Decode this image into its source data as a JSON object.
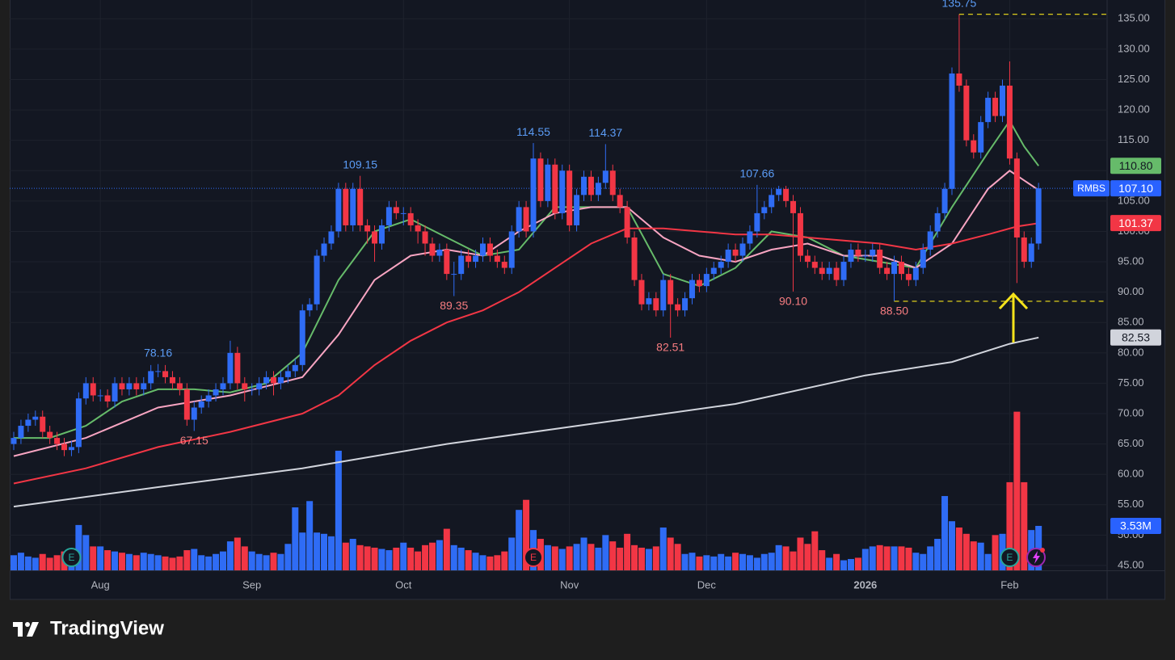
{
  "chart_data": {
    "type": "candlestick",
    "symbol": "RMBS",
    "xlim": [
      -0.56,
      151.5
    ],
    "ylim": [
      44.2,
      138.1
    ],
    "grid": true,
    "up_color": "#2f6cf5",
    "down_color": "#f23645",
    "xticks": [
      {
        "value": 12,
        "label": "Aug"
      },
      {
        "value": 33,
        "label": "Sep"
      },
      {
        "value": 54,
        "label": "Oct"
      },
      {
        "value": 77,
        "label": "Nov"
      },
      {
        "value": 96,
        "label": "Dec"
      },
      {
        "value": 118,
        "label": "2026"
      },
      {
        "value": 138,
        "label": "Feb"
      }
    ],
    "yticks": [
      {
        "value": 45,
        "label": "45.00"
      },
      {
        "value": 50,
        "label": "50.00"
      },
      {
        "value": 55,
        "label": "55.00"
      },
      {
        "value": 60,
        "label": "60.00"
      },
      {
        "value": 65,
        "label": "65.00"
      },
      {
        "value": 70,
        "label": "70.00"
      },
      {
        "value": 75,
        "label": "75.00"
      },
      {
        "value": 80,
        "label": "80.00"
      },
      {
        "value": 85,
        "label": "85.00"
      },
      {
        "value": 90,
        "label": "90.00"
      },
      {
        "value": 95,
        "label": "95.00"
      },
      {
        "value": 100,
        "label": "100.00"
      },
      {
        "value": 105,
        "label": "105.00"
      },
      {
        "value": 110,
        "label": "110.00"
      },
      {
        "value": 115,
        "label": "115.00"
      },
      {
        "value": 120,
        "label": "120.00"
      },
      {
        "value": 125,
        "label": "125.00"
      },
      {
        "value": 130,
        "label": "130.00"
      },
      {
        "value": 135,
        "label": "135.00"
      }
    ],
    "open": [
      65,
      66,
      68,
      69,
      69.5,
      67,
      66,
      65,
      64,
      64.5,
      72.5,
      75,
      73,
      73,
      72,
      75,
      74,
      75,
      74,
      75,
      77,
      77,
      76,
      75,
      74,
      69,
      71,
      72,
      73,
      74,
      75,
      80,
      75,
      74,
      74,
      75,
      76,
      75,
      76,
      77,
      78,
      87,
      88,
      96,
      98,
      100,
      107,
      101,
      107,
      101,
      100,
      98,
      101,
      104,
      103,
      103,
      101,
      100,
      98,
      96,
      97,
      93,
      93,
      96,
      95,
      96,
      98,
      96,
      95,
      94,
      100,
      104,
      100,
      112,
      105,
      111,
      103,
      110,
      101,
      106,
      109,
      106,
      108,
      110,
      106,
      104,
      99,
      92,
      88,
      89,
      87,
      92,
      88,
      87,
      89,
      92,
      91,
      93,
      94,
      95,
      97,
      96,
      98,
      100,
      103,
      104,
      106,
      107,
      105,
      103,
      96,
      95,
      94,
      93,
      94,
      92,
      95,
      97,
      96,
      96,
      97,
      94,
      93,
      95,
      93,
      92,
      94,
      97,
      100,
      103,
      107,
      126,
      124,
      115,
      113,
      118,
      122,
      119,
      124,
      112,
      99,
      95,
      98
    ],
    "high": [
      67,
      69,
      70,
      70.5,
      70.5,
      68,
      67,
      66,
      65.5,
      73.5,
      76,
      76,
      74,
      74,
      76,
      76,
      76,
      76,
      76,
      78,
      78.16,
      78,
      77,
      76,
      75,
      72,
      73,
      74,
      75,
      76,
      82,
      81,
      76,
      75,
      76,
      77,
      77,
      77,
      78,
      79,
      88,
      89,
      97,
      99,
      101,
      108,
      108,
      108,
      109.15,
      102,
      101,
      102,
      105,
      105,
      104,
      104,
      102,
      101,
      99,
      98,
      98,
      95,
      97,
      97,
      97,
      99,
      99,
      97,
      96,
      101,
      105,
      105,
      114.55,
      113,
      112,
      112,
      111,
      111,
      107,
      110,
      110,
      109,
      114.37,
      111,
      107,
      105,
      100,
      93,
      90,
      90,
      93,
      93,
      89,
      90,
      93,
      93,
      94,
      95,
      96,
      98,
      98,
      99,
      101,
      107.66,
      105,
      107,
      107.5,
      107.5,
      106,
      104,
      97,
      96,
      95,
      95,
      95,
      96,
      98,
      98,
      97,
      98,
      98,
      95,
      96,
      96,
      94,
      95,
      98,
      101,
      104,
      108,
      127,
      135.75,
      125,
      116,
      119,
      123,
      123,
      125,
      128,
      113,
      100,
      99,
      108
    ],
    "low": [
      64,
      65,
      67,
      68,
      66,
      65,
      64,
      63,
      63,
      63.5,
      71.5,
      72,
      72,
      71,
      71,
      73,
      73,
      73,
      73,
      74,
      76,
      75,
      74,
      73,
      68,
      67.15,
      70,
      71,
      72,
      73,
      74,
      74,
      72,
      73,
      73,
      74,
      73,
      74,
      75,
      76,
      77,
      86,
      87,
      95,
      97,
      99,
      100,
      100,
      100,
      98,
      95,
      97,
      100,
      102,
      101,
      100,
      98,
      96,
      95,
      95,
      92,
      89.35,
      92,
      94,
      94,
      95,
      95,
      94,
      93,
      93,
      99,
      99,
      99,
      104,
      104,
      102,
      102,
      100,
      100,
      105,
      105,
      105,
      107,
      105,
      103,
      98,
      91,
      87,
      87,
      86,
      86,
      82.51,
      86,
      86,
      88,
      90,
      90,
      92,
      93,
      94,
      95,
      95,
      97,
      99,
      102,
      103,
      105,
      104,
      90.1,
      95,
      94,
      93,
      92,
      92,
      91,
      91,
      94,
      95,
      95,
      95,
      93,
      92,
      88.5,
      92,
      91,
      91,
      93,
      96,
      99,
      102,
      106,
      123,
      114,
      112,
      112,
      117,
      118,
      118,
      111,
      91.5,
      94,
      94,
      97
    ],
    "close": [
      66,
      68,
      69,
      69.5,
      67,
      66,
      65,
      64,
      64.5,
      72.5,
      75,
      73,
      73,
      72,
      75,
      74,
      75,
      74,
      75,
      77,
      77,
      76,
      75,
      74,
      69,
      71,
      72,
      73,
      74,
      75,
      80,
      75,
      74,
      74,
      75,
      76,
      75,
      76,
      77,
      78,
      87,
      88,
      96,
      98,
      100,
      107,
      101,
      107,
      101,
      100,
      98,
      101,
      104,
      103,
      103,
      101,
      100,
      98,
      96,
      97,
      93,
      93,
      96,
      95,
      96,
      98,
      96,
      95,
      94,
      100,
      104,
      100,
      112,
      105,
      111,
      103,
      110,
      101,
      106,
      109,
      106,
      108,
      110,
      106,
      104,
      99,
      92,
      88,
      89,
      87,
      92,
      88,
      87,
      89,
      92,
      91,
      93,
      94,
      95,
      97,
      96,
      98,
      100,
      103,
      104,
      106,
      107,
      105,
      103,
      96,
      95,
      94,
      93,
      94,
      92,
      95,
      97,
      96,
      96,
      97,
      94,
      93,
      95,
      93,
      92,
      94,
      97,
      100,
      103,
      107,
      126,
      124,
      115,
      113,
      118,
      122,
      119,
      124,
      112,
      99,
      95,
      98,
      107.1
    ],
    "last_label": "107.10",
    "volume": {
      "ylim": [
        0,
        45.3
      ],
      "values": [
        1.2,
        1.4,
        1.1,
        1.0,
        1.3,
        1.0,
        1.2,
        1.5,
        1.6,
        3.6,
        2.8,
        1.9,
        1.9,
        1.6,
        1.5,
        1.4,
        1.3,
        1.2,
        1.4,
        1.3,
        1.2,
        1.1,
        1.0,
        1.1,
        1.6,
        1.7,
        1.2,
        1.1,
        1.3,
        1.5,
        2.3,
        2.6,
        1.9,
        1.5,
        1.3,
        1.2,
        1.4,
        1.3,
        2.1,
        5.0,
        3.0,
        5.5,
        3.0,
        2.9,
        2.7,
        9.5,
        2.2,
        2.5,
        2.0,
        1.9,
        1.8,
        1.7,
        1.6,
        1.8,
        2.2,
        1.8,
        1.5,
        2.0,
        2.2,
        2.4,
        3.3,
        2.0,
        1.8,
        1.6,
        1.4,
        1.2,
        1.1,
        1.2,
        1.5,
        2.6,
        4.8,
        5.6,
        3.2,
        2.5,
        2.0,
        1.9,
        1.7,
        1.9,
        2.1,
        2.6,
        2.1,
        1.8,
        2.8,
        2.3,
        1.8,
        2.9,
        2.0,
        1.8,
        1.7,
        1.9,
        3.4,
        2.6,
        2.1,
        1.3,
        1.4,
        1.1,
        1.2,
        1.1,
        1.3,
        1.1,
        1.4,
        1.3,
        1.2,
        1.0,
        1.3,
        1.4,
        2.0,
        1.9,
        1.5,
        2.6,
        2.1,
        3.1,
        1.6,
        1.0,
        1.3,
        0.8,
        0.9,
        1.0,
        1.7,
        1.9,
        2.0,
        1.9,
        1.9,
        1.9,
        1.8,
        1.4,
        1.3,
        1.9,
        2.5,
        5.9,
        3.9,
        3.4,
        2.9,
        2.3,
        2.2,
        1.3,
        2.8,
        2.9,
        7.0,
        12.6,
        7.0,
        3.2,
        3.53
      ],
      "last_label": "3.53M"
    },
    "moving_averages": [
      {
        "color": "#66bb6a",
        "x": [
          0,
          5,
          10,
          15,
          20,
          25,
          30,
          35,
          40,
          45,
          50,
          55,
          60,
          65,
          70,
          75,
          80,
          85,
          90,
          95,
          100,
          105,
          110,
          115,
          120,
          125,
          130,
          135,
          138,
          140,
          142
        ],
        "values": [
          66,
          66,
          68,
          72,
          74,
          74,
          73.5,
          75,
          80,
          92,
          100,
          102,
          99,
          96,
          97,
          104,
          104,
          104,
          93,
          91,
          94,
          100,
          99,
          96,
          95,
          94,
          104,
          113,
          118.2,
          114,
          110.8
        ],
        "last_label": "110.80"
      },
      {
        "color": "#f8a5c2",
        "x": [
          0,
          10,
          20,
          30,
          40,
          45,
          50,
          55,
          60,
          65,
          70,
          75,
          80,
          85,
          90,
          95,
          100,
          105,
          110,
          115,
          120,
          125,
          130,
          135,
          138,
          142
        ],
        "values": [
          63,
          66,
          71,
          73,
          76,
          83,
          92,
          96,
          97,
          96,
          100,
          103,
          104,
          104,
          99,
          96,
          95,
          97,
          98,
          96,
          96,
          94,
          98,
          107,
          110,
          106.8
        ]
      },
      {
        "color": "#f23645",
        "x": [
          0,
          10,
          20,
          30,
          40,
          45,
          50,
          55,
          60,
          65,
          70,
          75,
          80,
          85,
          90,
          95,
          100,
          105,
          110,
          115,
          120,
          125,
          130,
          135,
          139,
          142
        ],
        "values": [
          58.5,
          61,
          64.5,
          67,
          70,
          73,
          78,
          82,
          85,
          87,
          90,
          94,
          98,
          100.5,
          100.5,
          100,
          99.5,
          99.5,
          99,
          98.5,
          98,
          97,
          98,
          99.5,
          100.8,
          101.37
        ],
        "last_label": "101.37"
      },
      {
        "color": "#d1d4dc",
        "x": [
          0,
          20,
          40,
          60,
          80,
          100,
          118,
          130,
          138,
          142
        ],
        "values": [
          54.7,
          57.9,
          61,
          65,
          68.3,
          71.6,
          76.3,
          78.5,
          81.5,
          82.53
        ],
        "last_label": "82.53"
      }
    ],
    "extremes": [
      {
        "x": 131,
        "value": 135.75,
        "label": "135.75"
      },
      {
        "x": 72,
        "value": 114.55,
        "label": "114.55"
      },
      {
        "x": 82,
        "value": 114.37,
        "label": "114.37"
      },
      {
        "x": 48,
        "value": 109.15,
        "label": "109.15"
      },
      {
        "x": 103,
        "value": 107.66,
        "label": "107.66"
      },
      {
        "x": 20,
        "value": 78.16,
        "label": "78.16"
      },
      {
        "x": 61,
        "value": 89.35,
        "label": "89.35"
      },
      {
        "x": 108,
        "value": 90.1,
        "label": "90.10"
      },
      {
        "x": 122,
        "value": 88.5,
        "label": "88.50"
      },
      {
        "x": 91,
        "value": 82.51,
        "label": "82.51"
      },
      {
        "x": 25,
        "value": 67.15,
        "label": "67.15"
      }
    ],
    "dashed_lines": [
      {
        "value": 135.75,
        "from": 131,
        "color": "#f5e31b"
      },
      {
        "value": 88.5,
        "from": 122,
        "color": "#f5e31b"
      }
    ],
    "events": [
      {
        "x": 8,
        "label": "E"
      },
      {
        "x": 72,
        "label": "E"
      },
      {
        "x": 138,
        "label": "E"
      }
    ]
  },
  "footer": {
    "brand": "TradingView"
  }
}
